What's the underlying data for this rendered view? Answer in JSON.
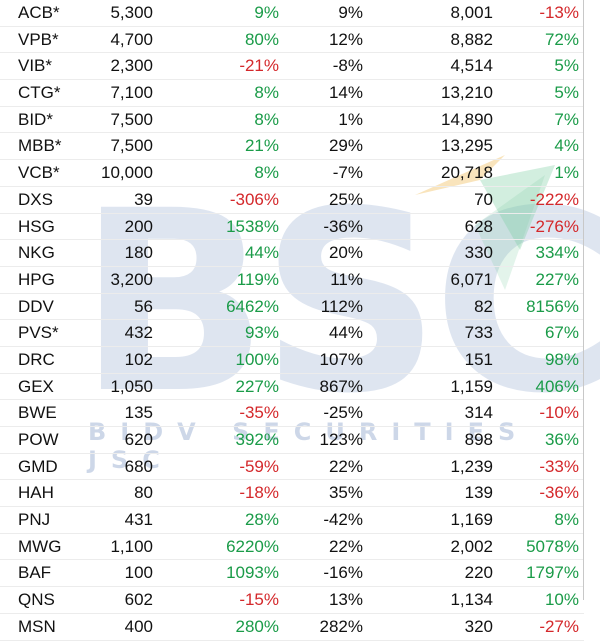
{
  "watermark": {
    "letters": "BSC",
    "tagline": "BIDV SECURITIES JSC",
    "colors": {
      "primary": "#1f4e9c",
      "arrow_yellow": "#f2c46a",
      "arrow_green": "#7fcfa4"
    }
  },
  "colors": {
    "positive": "#1a9b48",
    "negative": "#d4282b",
    "text": "#111111"
  },
  "rows": [
    {
      "ticker": "ACB*",
      "c1": "5,300",
      "c2": "9%",
      "c3": "9%",
      "c4": "8,001",
      "c5": "-13%"
    },
    {
      "ticker": "VPB*",
      "c1": "4,700",
      "c2": "80%",
      "c3": "12%",
      "c4": "8,882",
      "c5": "72%"
    },
    {
      "ticker": "VIB*",
      "c1": "2,300",
      "c2": "-21%",
      "c3": "-8%",
      "c4": "4,514",
      "c5": "5%"
    },
    {
      "ticker": "CTG*",
      "c1": "7,100",
      "c2": "8%",
      "c3": "14%",
      "c4": "13,210",
      "c5": "5%"
    },
    {
      "ticker": "BID*",
      "c1": "7,500",
      "c2": "8%",
      "c3": "1%",
      "c4": "14,890",
      "c5": "7%"
    },
    {
      "ticker": "MBB*",
      "c1": "7,500",
      "c2": "21%",
      "c3": "29%",
      "c4": "13,295",
      "c5": "4%"
    },
    {
      "ticker": "VCB*",
      "c1": "10,000",
      "c2": "8%",
      "c3": "-7%",
      "c4": "20,718",
      "c5": "1%"
    },
    {
      "ticker": "DXS",
      "c1": "39",
      "c2": "-306%",
      "c3": "25%",
      "c4": "70",
      "c5": "-222%"
    },
    {
      "ticker": "HSG",
      "c1": "200",
      "c2": "1538%",
      "c3": "-36%",
      "c4": "628",
      "c5": "-276%"
    },
    {
      "ticker": "NKG",
      "c1": "180",
      "c2": "44%",
      "c3": "20%",
      "c4": "330",
      "c5": "334%"
    },
    {
      "ticker": "HPG",
      "c1": "3,200",
      "c2": "119%",
      "c3": "11%",
      "c4": "6,071",
      "c5": "227%"
    },
    {
      "ticker": "DDV",
      "c1": "56",
      "c2": "6462%",
      "c3": "112%",
      "c4": "82",
      "c5": "8156%"
    },
    {
      "ticker": "PVS*",
      "c1": "432",
      "c2": "93%",
      "c3": "44%",
      "c4": "733",
      "c5": "67%"
    },
    {
      "ticker": "DRC",
      "c1": "102",
      "c2": "100%",
      "c3": "107%",
      "c4": "151",
      "c5": "98%"
    },
    {
      "ticker": "GEX",
      "c1": "1,050",
      "c2": "227%",
      "c3": "867%",
      "c4": "1,159",
      "c5": "406%"
    },
    {
      "ticker": "BWE",
      "c1": "135",
      "c2": "-35%",
      "c3": "-25%",
      "c4": "314",
      "c5": "-10%"
    },
    {
      "ticker": "POW",
      "c1": "620",
      "c2": "392%",
      "c3": "123%",
      "c4": "898",
      "c5": "36%"
    },
    {
      "ticker": "GMD",
      "c1": "680",
      "c2": "-59%",
      "c3": "22%",
      "c4": "1,239",
      "c5": "-33%"
    },
    {
      "ticker": "HAH",
      "c1": "80",
      "c2": "-18%",
      "c3": "35%",
      "c4": "139",
      "c5": "-36%"
    },
    {
      "ticker": "PNJ",
      "c1": "431",
      "c2": "28%",
      "c3": "-42%",
      "c4": "1,169",
      "c5": "8%"
    },
    {
      "ticker": "MWG",
      "c1": "1,100",
      "c2": "6220%",
      "c3": "22%",
      "c4": "2,002",
      "c5": "5078%"
    },
    {
      "ticker": "BAF",
      "c1": "100",
      "c2": "1093%",
      "c3": "-16%",
      "c4": "220",
      "c5": "1797%"
    },
    {
      "ticker": "QNS",
      "c1": "602",
      "c2": "-15%",
      "c3": "13%",
      "c4": "1,134",
      "c5": "10%"
    },
    {
      "ticker": "MSN",
      "c1": "400",
      "c2": "280%",
      "c3": "282%",
      "c4": "320",
      "c5": "-27%"
    }
  ]
}
